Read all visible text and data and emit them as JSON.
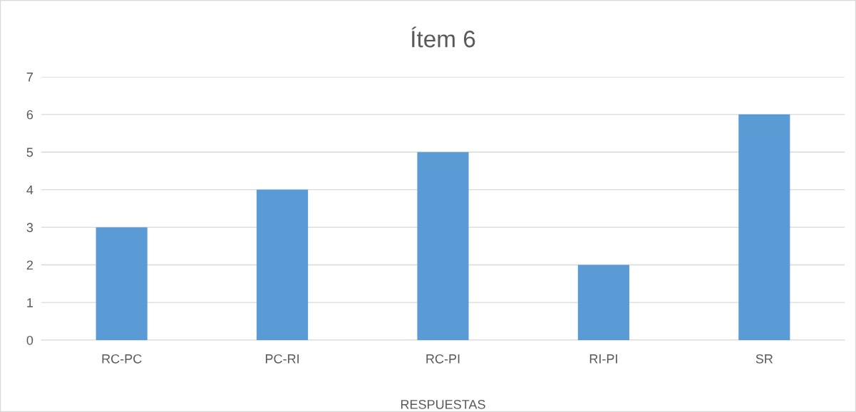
{
  "chart_data": {
    "type": "bar",
    "title": "Ítem 6",
    "xlabel": "RESPUESTAS",
    "categories": [
      "RC-PC",
      "PC-RI",
      "RC-PI",
      "RI-PI",
      "SR"
    ],
    "values": [
      3,
      4,
      5,
      2,
      6
    ],
    "color": "#5b9bd5",
    "ylim": [
      0,
      7
    ],
    "yticks": [
      0,
      1,
      2,
      3,
      4,
      5,
      6,
      7
    ],
    "grid": "y",
    "legend": false
  }
}
